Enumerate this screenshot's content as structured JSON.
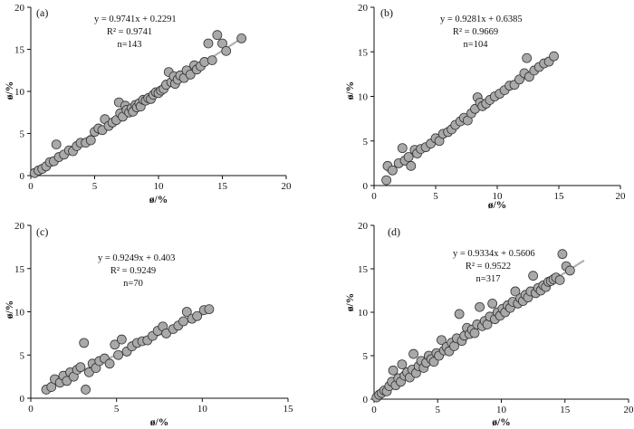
{
  "chart_data": [
    {
      "type": "scatter",
      "panel_label": "(a)",
      "equation": "y = 0.9741x + 0.2291",
      "r2_label": "R² = 0.9741",
      "n_label": "n=143",
      "xlabel": "ø/%",
      "ylabel": "ø/%",
      "xlim": [
        0,
        20
      ],
      "ylim": [
        0,
        20
      ],
      "xticks": [
        0,
        5,
        10,
        15,
        20
      ],
      "yticks": [
        0,
        5,
        10,
        15,
        20
      ],
      "fit": {
        "slope": 0.9741,
        "intercept": 0.2291,
        "x_range": [
          0,
          16.5
        ]
      },
      "points": [
        [
          0.3,
          0.3
        ],
        [
          0.6,
          0.6
        ],
        [
          0.9,
          0.8
        ],
        [
          1.2,
          1.1
        ],
        [
          1.5,
          1.6
        ],
        [
          1.8,
          1.7
        ],
        [
          2.0,
          3.7
        ],
        [
          2.2,
          2.2
        ],
        [
          2.6,
          2.5
        ],
        [
          3.0,
          3.0
        ],
        [
          3.3,
          2.9
        ],
        [
          3.6,
          3.5
        ],
        [
          3.9,
          3.9
        ],
        [
          4.3,
          3.9
        ],
        [
          4.7,
          4.2
        ],
        [
          5.0,
          5.2
        ],
        [
          5.3,
          5.6
        ],
        [
          5.6,
          5.4
        ],
        [
          5.8,
          6.7
        ],
        [
          6.1,
          5.9
        ],
        [
          6.4,
          6.3
        ],
        [
          6.7,
          6.6
        ],
        [
          6.9,
          8.7
        ],
        [
          7.0,
          7.4
        ],
        [
          7.2,
          7.0
        ],
        [
          7.4,
          8.3
        ],
        [
          7.5,
          7.8
        ],
        [
          7.7,
          7.5
        ],
        [
          7.9,
          8.0
        ],
        [
          8.0,
          7.6
        ],
        [
          8.2,
          8.4
        ],
        [
          8.3,
          8.1
        ],
        [
          8.5,
          8.6
        ],
        [
          8.6,
          8.2
        ],
        [
          8.8,
          9.0
        ],
        [
          9.0,
          8.9
        ],
        [
          9.2,
          9.2
        ],
        [
          9.4,
          9.1
        ],
        [
          9.6,
          9.6
        ],
        [
          9.8,
          9.9
        ],
        [
          10.0,
          9.8
        ],
        [
          10.2,
          10.1
        ],
        [
          10.4,
          10.3
        ],
        [
          10.6,
          10.8
        ],
        [
          10.8,
          12.3
        ],
        [
          11.0,
          11.1
        ],
        [
          11.2,
          11.8
        ],
        [
          11.3,
          10.9
        ],
        [
          11.5,
          11.4
        ],
        [
          11.7,
          11.9
        ],
        [
          12.0,
          11.6
        ],
        [
          12.2,
          12.5
        ],
        [
          12.5,
          12.0
        ],
        [
          12.8,
          13.1
        ],
        [
          13.0,
          12.6
        ],
        [
          13.3,
          13.0
        ],
        [
          13.6,
          13.5
        ],
        [
          13.9,
          15.7
        ],
        [
          14.2,
          13.7
        ],
        [
          14.6,
          16.7
        ],
        [
          15.0,
          15.7
        ],
        [
          15.3,
          14.8
        ],
        [
          16.5,
          16.3
        ]
      ]
    },
    {
      "type": "scatter",
      "panel_label": "(b)",
      "equation": "y = 0.9281x + 0.6385",
      "r2_label": "R² = 0.9669",
      "n_label": "n=104",
      "xlabel": "ø/%",
      "ylabel": "ø/%",
      "xlim": [
        0,
        20
      ],
      "ylim": [
        0,
        20
      ],
      "xticks": [
        0,
        5,
        10,
        15,
        20
      ],
      "yticks": [
        0,
        5,
        10,
        15,
        20
      ],
      "fit": {
        "slope": 0.9281,
        "intercept": 0.6385,
        "x_range": [
          1,
          14.5
        ]
      },
      "points": [
        [
          1.0,
          0.6
        ],
        [
          1.1,
          2.2
        ],
        [
          1.5,
          1.7
        ],
        [
          2.0,
          2.5
        ],
        [
          2.3,
          4.2
        ],
        [
          2.5,
          2.8
        ],
        [
          2.8,
          3.2
        ],
        [
          3.0,
          2.2
        ],
        [
          3.3,
          4.0
        ],
        [
          3.5,
          3.6
        ],
        [
          3.8,
          4.1
        ],
        [
          4.2,
          4.3
        ],
        [
          4.6,
          4.7
        ],
        [
          5.0,
          5.3
        ],
        [
          5.3,
          5.0
        ],
        [
          5.6,
          5.8
        ],
        [
          6.0,
          6.0
        ],
        [
          6.3,
          6.3
        ],
        [
          6.6,
          6.8
        ],
        [
          7.0,
          7.2
        ],
        [
          7.3,
          7.6
        ],
        [
          7.6,
          7.3
        ],
        [
          7.9,
          8.1
        ],
        [
          8.2,
          8.6
        ],
        [
          8.4,
          9.9
        ],
        [
          8.6,
          9.3
        ],
        [
          8.8,
          8.9
        ],
        [
          9.1,
          9.2
        ],
        [
          9.4,
          9.6
        ],
        [
          9.8,
          10.0
        ],
        [
          10.2,
          10.3
        ],
        [
          10.6,
          10.7
        ],
        [
          11.0,
          11.2
        ],
        [
          11.4,
          11.3
        ],
        [
          11.8,
          11.9
        ],
        [
          12.2,
          12.6
        ],
        [
          12.4,
          14.3
        ],
        [
          12.6,
          12.2
        ],
        [
          13.0,
          12.9
        ],
        [
          13.4,
          13.3
        ],
        [
          13.8,
          13.7
        ],
        [
          14.2,
          13.9
        ],
        [
          14.6,
          14.5
        ]
      ]
    },
    {
      "type": "scatter",
      "panel_label": "(c)",
      "equation": "y = 0.9249x + 0.403",
      "r2_label": "R² = 0.9249",
      "n_label": "n=70",
      "xlabel": "ø/%",
      "ylabel": "ø/%",
      "xlim": [
        0,
        15
      ],
      "ylim": [
        0,
        20
      ],
      "xticks": [
        0,
        5,
        10,
        15
      ],
      "yticks": [
        0,
        5,
        10,
        15,
        20
      ],
      "fit": {
        "slope": 0.9249,
        "intercept": 0.403,
        "x_range": [
          0.8,
          10.5
        ]
      },
      "points": [
        [
          0.9,
          1.0
        ],
        [
          1.2,
          1.3
        ],
        [
          1.4,
          2.2
        ],
        [
          1.7,
          1.8
        ],
        [
          1.9,
          2.6
        ],
        [
          2.1,
          2.0
        ],
        [
          2.3,
          3.0
        ],
        [
          2.5,
          2.5
        ],
        [
          2.7,
          3.3
        ],
        [
          2.9,
          3.6
        ],
        [
          3.1,
          6.4
        ],
        [
          3.2,
          1.0
        ],
        [
          3.4,
          3.0
        ],
        [
          3.6,
          4.0
        ],
        [
          3.8,
          3.5
        ],
        [
          4.0,
          4.3
        ],
        [
          4.3,
          4.6
        ],
        [
          4.6,
          4.0
        ],
        [
          4.9,
          6.2
        ],
        [
          5.1,
          5.0
        ],
        [
          5.3,
          6.8
        ],
        [
          5.6,
          5.4
        ],
        [
          5.9,
          6.0
        ],
        [
          6.2,
          6.4
        ],
        [
          6.5,
          6.6
        ],
        [
          6.8,
          6.7
        ],
        [
          7.1,
          7.2
        ],
        [
          7.4,
          7.8
        ],
        [
          7.7,
          8.3
        ],
        [
          7.9,
          7.5
        ],
        [
          8.3,
          8.0
        ],
        [
          8.6,
          8.4
        ],
        [
          8.9,
          8.9
        ],
        [
          9.1,
          10.0
        ],
        [
          9.4,
          9.2
        ],
        [
          9.7,
          9.5
        ],
        [
          10.1,
          10.2
        ],
        [
          10.4,
          10.3
        ]
      ]
    },
    {
      "type": "scatter",
      "panel_label": "(d)",
      "equation": "y = 0.9334x + 0.5606",
      "r2_label": "R² = 0.9522",
      "n_label": "n=317",
      "xlabel": "ø/%",
      "ylabel": "ø/%",
      "xlim": [
        0,
        20
      ],
      "ylim": [
        0,
        20
      ],
      "xticks": [
        0,
        5,
        10,
        15,
        20
      ],
      "yticks": [
        0,
        5,
        10,
        15,
        20
      ],
      "fit": {
        "slope": 0.9334,
        "intercept": 0.5606,
        "x_range": [
          0,
          16.5
        ]
      },
      "points": [
        [
          0.2,
          0.2
        ],
        [
          0.4,
          0.5
        ],
        [
          0.6,
          0.7
        ],
        [
          0.8,
          1.0
        ],
        [
          1.0,
          0.9
        ],
        [
          1.2,
          1.5
        ],
        [
          1.4,
          2.0
        ],
        [
          1.5,
          3.3
        ],
        [
          1.7,
          1.6
        ],
        [
          1.9,
          2.4
        ],
        [
          2.1,
          2.0
        ],
        [
          2.2,
          4.0
        ],
        [
          2.4,
          2.7
        ],
        [
          2.6,
          3.1
        ],
        [
          2.8,
          2.5
        ],
        [
          3.0,
          3.4
        ],
        [
          3.1,
          5.2
        ],
        [
          3.3,
          3.0
        ],
        [
          3.5,
          3.8
        ],
        [
          3.7,
          4.4
        ],
        [
          3.9,
          3.6
        ],
        [
          4.1,
          4.2
        ],
        [
          4.3,
          5.0
        ],
        [
          4.5,
          4.6
        ],
        [
          4.7,
          4.3
        ],
        [
          4.9,
          5.3
        ],
        [
          5.1,
          5.0
        ],
        [
          5.3,
          6.8
        ],
        [
          5.5,
          5.6
        ],
        [
          5.7,
          6.0
        ],
        [
          5.9,
          5.5
        ],
        [
          6.1,
          6.5
        ],
        [
          6.3,
          6.1
        ],
        [
          6.5,
          7.0
        ],
        [
          6.7,
          9.8
        ],
        [
          6.9,
          6.7
        ],
        [
          7.1,
          7.3
        ],
        [
          7.3,
          8.2
        ],
        [
          7.5,
          7.5
        ],
        [
          7.7,
          8.0
        ],
        [
          7.9,
          7.6
        ],
        [
          8.1,
          8.6
        ],
        [
          8.3,
          10.6
        ],
        [
          8.5,
          8.4
        ],
        [
          8.7,
          9.0
        ],
        [
          8.9,
          8.6
        ],
        [
          9.1,
          9.5
        ],
        [
          9.3,
          11.0
        ],
        [
          9.5,
          9.2
        ],
        [
          9.7,
          10.0
        ],
        [
          9.9,
          9.6
        ],
        [
          10.1,
          10.4
        ],
        [
          10.3,
          10.0
        ],
        [
          10.5,
          10.8
        ],
        [
          10.7,
          10.5
        ],
        [
          10.9,
          11.2
        ],
        [
          11.1,
          12.4
        ],
        [
          11.3,
          11.0
        ],
        [
          11.5,
          11.6
        ],
        [
          11.7,
          11.3
        ],
        [
          11.9,
          12.0
        ],
        [
          12.1,
          11.7
        ],
        [
          12.3,
          12.4
        ],
        [
          12.5,
          14.2
        ],
        [
          12.7,
          12.2
        ],
        [
          12.9,
          12.8
        ],
        [
          13.1,
          12.5
        ],
        [
          13.3,
          13.1
        ],
        [
          13.5,
          12.9
        ],
        [
          13.7,
          13.5
        ],
        [
          13.9,
          13.6
        ],
        [
          14.1,
          13.8
        ],
        [
          14.3,
          14.0
        ],
        [
          14.6,
          13.7
        ],
        [
          14.8,
          16.7
        ],
        [
          15.1,
          15.3
        ],
        [
          15.4,
          14.8
        ]
      ]
    }
  ]
}
